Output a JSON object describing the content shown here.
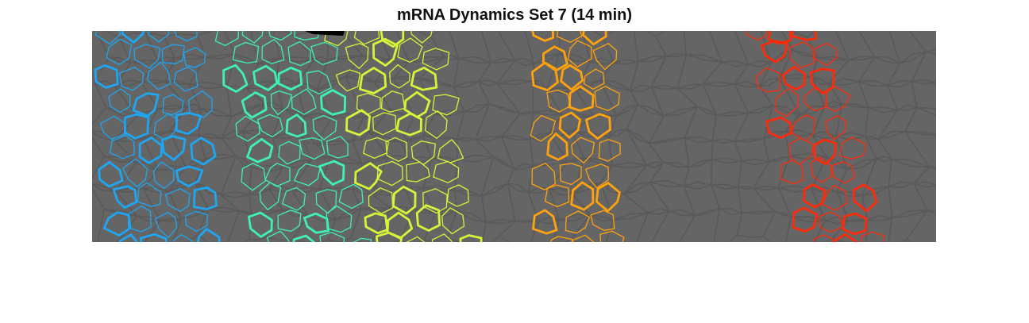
{
  "figure": {
    "title": "mRNA Dynamics Set 7 (14 min)"
  },
  "image": {
    "background_color": "#656565",
    "membrane_color": "#5a5a5a",
    "mask_color": "#000000",
    "stripes": [
      {
        "name": "stripe-1",
        "color": "#1ea6f2"
      },
      {
        "name": "stripe-2",
        "color": "#3ff2b4"
      },
      {
        "name": "stripe-3",
        "color": "#d4f53a"
      },
      {
        "name": "stripe-4",
        "color": "#ffa20d"
      },
      {
        "name": "stripe-5",
        "color": "#ff2a0a"
      }
    ]
  }
}
